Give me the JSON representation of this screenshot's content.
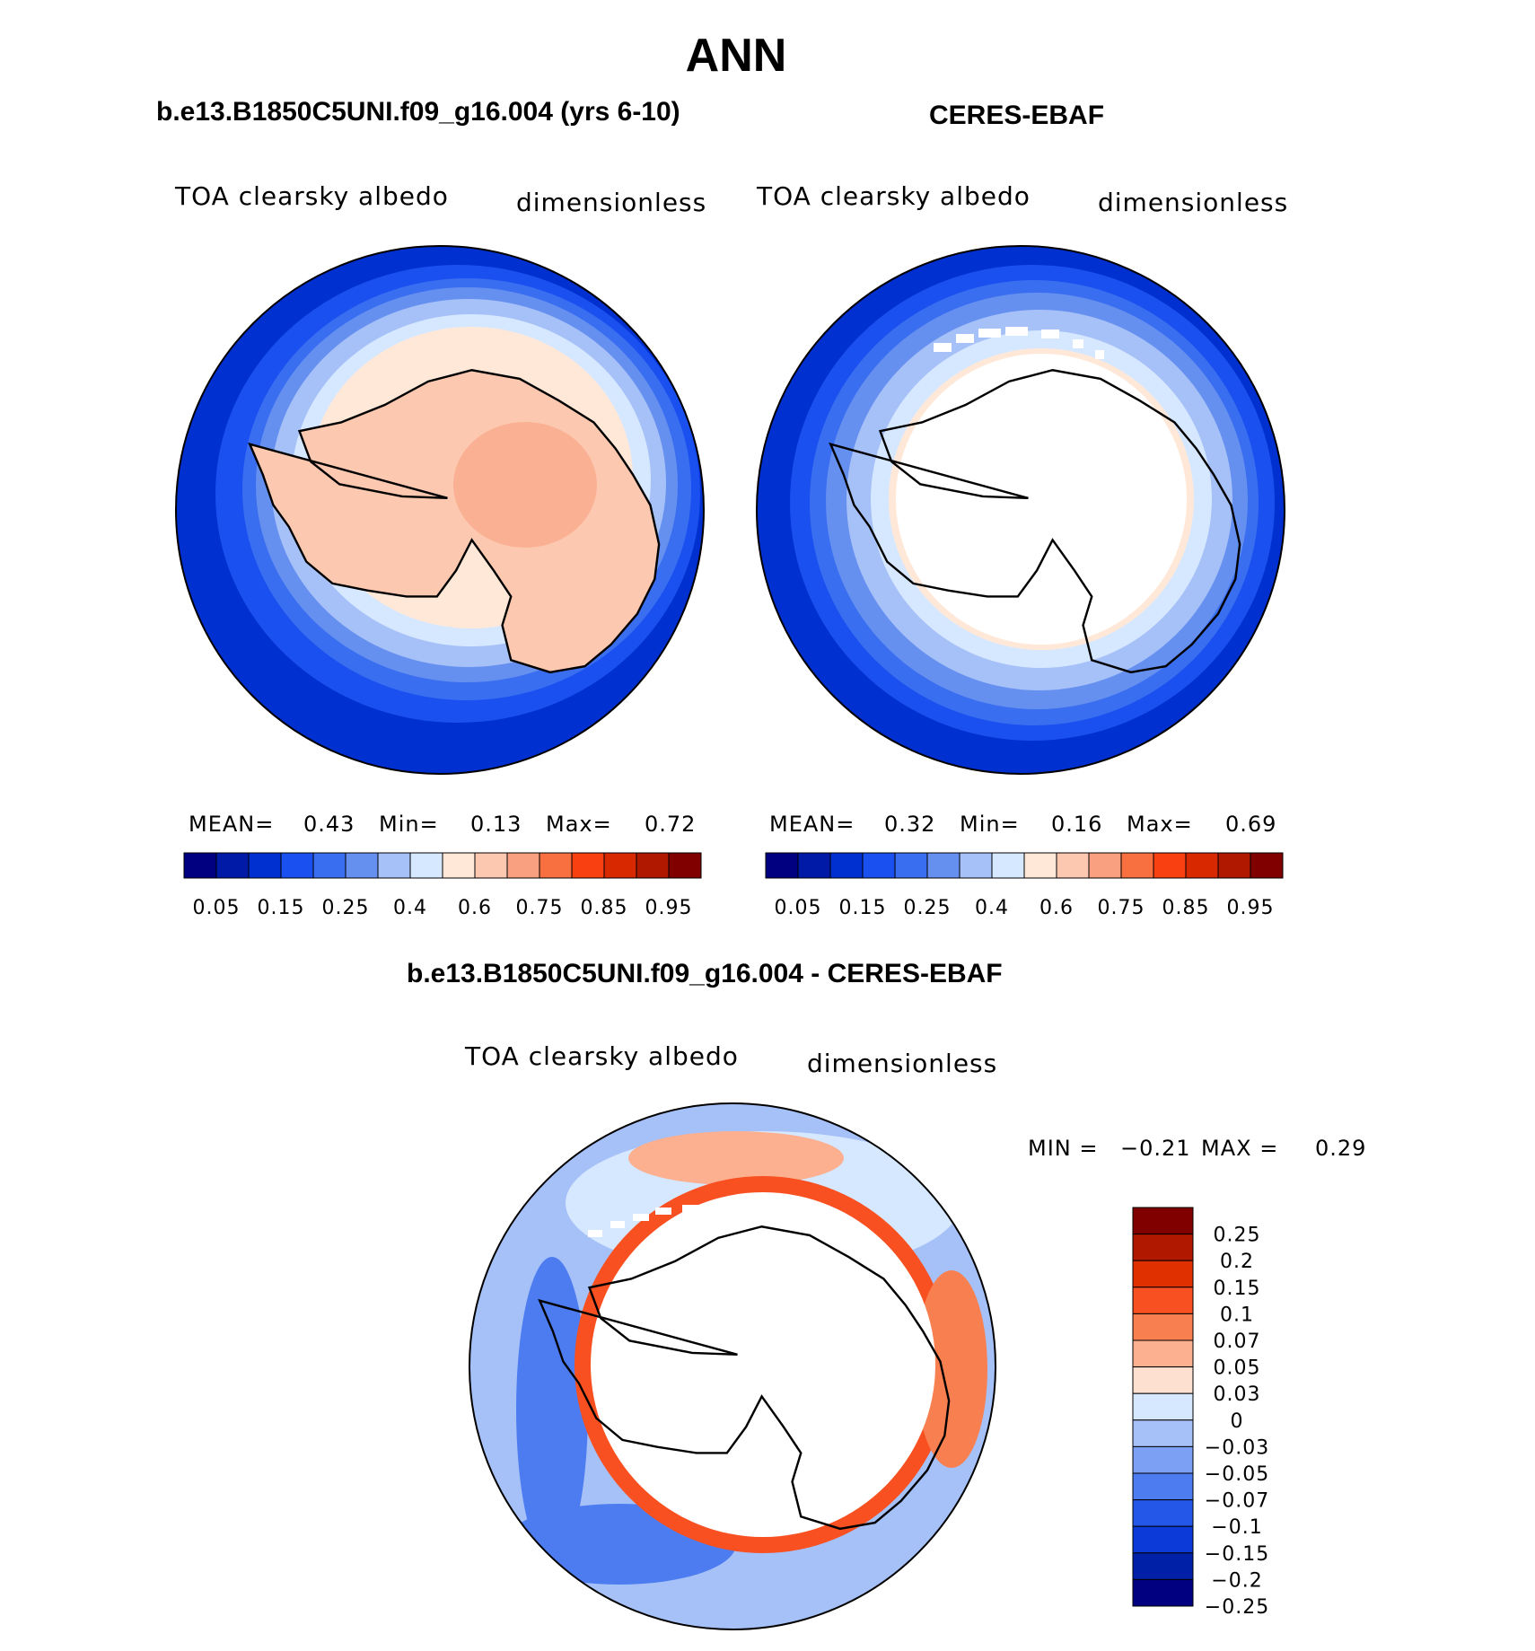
{
  "title": "ANN",
  "panels": [
    {
      "subtitle": "b.e13.B1850C5UNI.f09_g16.004 (yrs 6-10)",
      "left_label": "TOA clearsky albedo",
      "right_label": "dimensionless",
      "stats": {
        "mean_label": "MEAN=",
        "mean": "0.43",
        "min_label": "Min=",
        "min": "0.13",
        "max_label": "Max=",
        "max": "0.72"
      }
    },
    {
      "subtitle": "CERES-EBAF",
      "left_label": "TOA clearsky albedo",
      "right_label": "dimensionless",
      "stats": {
        "mean_label": "MEAN=",
        "mean": "0.32",
        "min_label": "Min=",
        "min": "0.16",
        "max_label": "Max=",
        "max": "0.69"
      }
    }
  ],
  "abs_colorbar": {
    "colors": [
      "#000080",
      "#001aa8",
      "#0030d0",
      "#1a4ff0",
      "#3a6ef0",
      "#6690f0",
      "#a6c0f8",
      "#d6e8ff",
      "#ffe8d8",
      "#fcc8b0",
      "#f8a080",
      "#f87040",
      "#f84010",
      "#d82800",
      "#b01800",
      "#800000"
    ],
    "tick_labels": [
      "0.05",
      "0.15",
      "0.25",
      "0.4",
      "0.6",
      "0.75",
      "0.85",
      "0.95"
    ]
  },
  "diff_panel": {
    "subtitle": "b.e13.B1850C5UNI.f09_g16.004 - CERES-EBAF",
    "left_label": "TOA clearsky albedo",
    "right_label": "dimensionless",
    "min_label": "MIN =",
    "min": "−0.21",
    "max_label": "MAX =",
    "max": "0.29"
  },
  "diff_colorbar": {
    "colors": [
      "#800000",
      "#b01800",
      "#e03000",
      "#f85020",
      "#f88050",
      "#fcb090",
      "#fde0d0",
      "#d6e8ff",
      "#a6c0f8",
      "#7ca0f4",
      "#4c7cf0",
      "#2456e8",
      "#0c3ad8",
      "#0020a8",
      "#000080"
    ],
    "tick_labels": [
      "0.25",
      "0.2",
      "0.15",
      "0.1",
      "0.07",
      "0.05",
      "0.03",
      "0",
      "−0.03",
      "−0.05",
      "−0.07",
      "−0.1",
      "−0.15",
      "−0.2",
      "−0.25"
    ]
  }
}
